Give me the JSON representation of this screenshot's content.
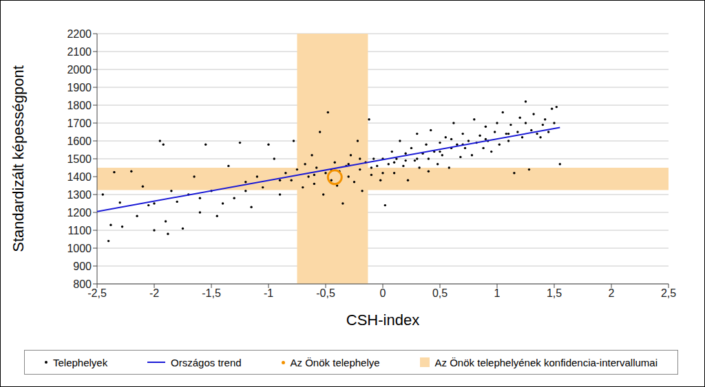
{
  "chart_data": {
    "type": "scatter",
    "x_label": "CSH-index",
    "y_label": "Standardizált képességpont",
    "xlim": [
      -2.5,
      2.5
    ],
    "xticks": [
      {
        "value": -2.5,
        "label": "-2,5"
      },
      -2,
      {
        "value": -1.5,
        "label": "-1,5"
      },
      -1,
      {
        "value": -0.5,
        "label": "-0,5"
      },
      0,
      {
        "value": 0.5,
        "label": "0,5"
      },
      1,
      {
        "value": 1.5,
        "label": "1,5"
      },
      2,
      {
        "value": 2.5,
        "label": "2,5"
      }
    ],
    "ylim": [
      800,
      2200
    ],
    "yticks": [
      800,
      900,
      1000,
      1100,
      1200,
      1300,
      1400,
      1500,
      1600,
      1700,
      1800,
      1900,
      2000,
      2100,
      2200
    ],
    "grid": true,
    "legend": "bottom",
    "series": [
      {
        "name": "Az Önök telephelyének konfidencia-intervallumai",
        "type": "band",
        "color": "#fbd9a7",
        "x": [
          -0.75,
          -0.13
        ],
        "y": [
          1325,
          1450
        ]
      },
      {
        "name": "Telephelyek",
        "type": "scatter",
        "marker": "dot",
        "color": "#000000",
        "x": [
          -2.45,
          -2.4,
          -2.38,
          -2.35,
          -2.3,
          -2.28,
          -2.2,
          -2.15,
          -2.1,
          -2.05,
          -2.0,
          -1.95,
          -1.92,
          -1.9,
          -1.88,
          -1.85,
          -1.8,
          -1.75,
          -1.7,
          -1.65,
          -1.6,
          -1.55,
          -1.5,
          -1.45,
          -1.4,
          -1.35,
          -1.3,
          -1.25,
          -1.2,
          -1.15,
          -1.1,
          -1.05,
          -1.0,
          -0.95,
          -0.9,
          -0.85,
          -0.8,
          -0.78,
          -0.75,
          -0.7,
          -0.68,
          -0.65,
          -0.62,
          -0.6,
          -0.58,
          -0.55,
          -0.52,
          -0.5,
          -0.48,
          -0.45,
          -0.42,
          -0.4,
          -0.38,
          -0.35,
          -0.32,
          -0.3,
          -0.28,
          -0.25,
          -0.22,
          -0.2,
          -0.18,
          -0.15,
          -0.12,
          -0.1,
          -0.08,
          -0.05,
          -0.02,
          0.0,
          0.02,
          0.05,
          0.08,
          0.1,
          0.12,
          0.15,
          0.18,
          0.2,
          0.22,
          0.25,
          0.28,
          0.3,
          0.32,
          0.35,
          0.38,
          0.4,
          0.42,
          0.45,
          0.48,
          0.5,
          0.52,
          0.55,
          0.58,
          0.6,
          0.62,
          0.65,
          0.68,
          0.7,
          0.72,
          0.75,
          0.78,
          0.8,
          0.82,
          0.85,
          0.88,
          0.9,
          0.92,
          0.95,
          0.98,
          1.0,
          1.02,
          1.05,
          1.08,
          1.1,
          1.12,
          1.15,
          1.18,
          1.2,
          1.22,
          1.25,
          1.28,
          1.3,
          1.32,
          1.35,
          1.38,
          1.4,
          1.42,
          1.45,
          1.48,
          1.5,
          1.52,
          1.55,
          -0.6,
          -0.3,
          -0.1,
          0.1,
          0.3,
          0.5,
          0.7,
          0.9,
          1.1,
          1.25,
          -0.9,
          -1.2,
          -1.6,
          -2.0,
          0.4,
          0.6,
          0.2,
          -0.45,
          -0.2,
          0.0
        ],
        "y": [
          1300,
          1040,
          1130,
          1425,
          1255,
          1120,
          1430,
          1180,
          1345,
          1240,
          1100,
          1600,
          1580,
          1150,
          1080,
          1320,
          1260,
          1110,
          1300,
          1400,
          1200,
          1580,
          1320,
          1180,
          1250,
          1460,
          1280,
          1590,
          1370,
          1230,
          1400,
          1340,
          1580,
          1500,
          1300,
          1420,
          1380,
          1600,
          1440,
          1340,
          1470,
          1400,
          1520,
          1360,
          1450,
          1650,
          1300,
          1420,
          1760,
          1380,
          1480,
          1350,
          1430,
          1250,
          1460,
          1400,
          1520,
          1370,
          1600,
          1440,
          1320,
          1480,
          1720,
          1410,
          1500,
          1460,
          1380,
          1500,
          1240,
          1470,
          1540,
          1420,
          1500,
          1600,
          1460,
          1530,
          1380,
          1560,
          1490,
          1640,
          1450,
          1530,
          1580,
          1500,
          1660,
          1540,
          1470,
          1590,
          1520,
          1620,
          1450,
          1560,
          1700,
          1580,
          1510,
          1640,
          1560,
          1600,
          1520,
          1720,
          1590,
          1630,
          1560,
          1680,
          1600,
          1540,
          1650,
          1700,
          1580,
          1760,
          1640,
          1600,
          1690,
          1420,
          1650,
          1730,
          1620,
          1700,
          1440,
          1660,
          1750,
          1640,
          1620,
          1690,
          1720,
          1650,
          1780,
          1700,
          1790,
          1470,
          1410,
          1470,
          1450,
          1480,
          1500,
          1540,
          1580,
          1610,
          1640,
          1820,
          1380,
          1320,
          1280,
          1250,
          1430,
          1610,
          1490,
          1440,
          1500,
          1420
        ]
      },
      {
        "name": "Országos trend",
        "type": "line",
        "color": "#1a1ad6",
        "x": [
          -2.5,
          1.55
        ],
        "y": [
          1205,
          1675
        ]
      },
      {
        "name": "Az Önök telephelye",
        "type": "scatter",
        "marker": "circle",
        "color": "#f39200",
        "x": [
          -0.42
        ],
        "y": [
          1397
        ]
      }
    ]
  }
}
